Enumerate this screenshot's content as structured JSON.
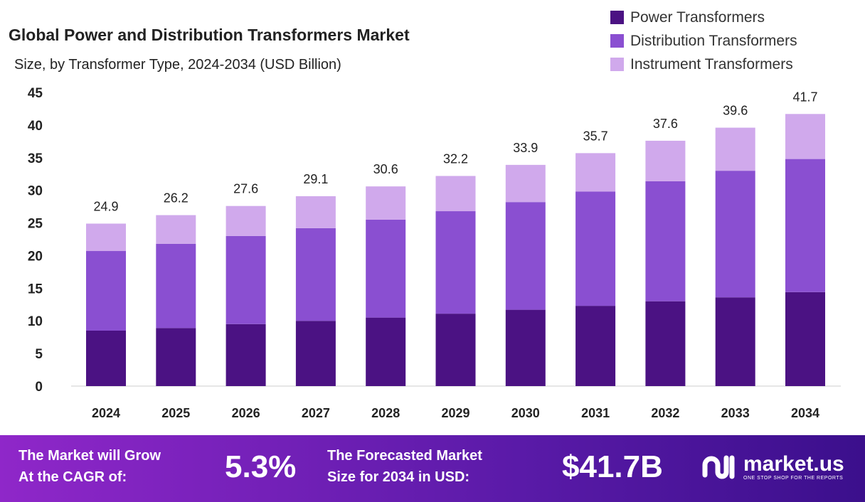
{
  "chart_data": {
    "type": "bar",
    "stacked": true,
    "title": "Global Power and Distribution Transformers Market",
    "subtitle": "Size, by Transformer Type, 2024-2034 (USD Billion)",
    "categories": [
      "2024",
      "2025",
      "2026",
      "2027",
      "2028",
      "2029",
      "2030",
      "2031",
      "2032",
      "2033",
      "2034"
    ],
    "series": [
      {
        "name": "Power Transformers",
        "color": "#4b1283",
        "values": [
          8.5,
          8.9,
          9.5,
          10.0,
          10.5,
          11.1,
          11.7,
          12.3,
          13.0,
          13.6,
          14.4
        ]
      },
      {
        "name": "Distribution Transformers",
        "color": "#8a4fd1",
        "values": [
          12.2,
          12.9,
          13.5,
          14.2,
          15.0,
          15.7,
          16.5,
          17.5,
          18.4,
          19.4,
          20.4
        ]
      },
      {
        "name": "Instrument Transformers",
        "color": "#d0a9ec",
        "values": [
          4.2,
          4.4,
          4.6,
          4.9,
          5.1,
          5.4,
          5.7,
          5.9,
          6.2,
          6.6,
          6.9
        ]
      }
    ],
    "totals": [
      "24.9",
      "26.2",
      "27.6",
      "29.1",
      "30.6",
      "32.2",
      "33.9",
      "35.7",
      "37.6",
      "39.6",
      "41.7"
    ],
    "yticks": [
      0,
      5,
      10,
      15,
      20,
      25,
      30,
      35,
      40,
      45
    ],
    "ylim": [
      0,
      45
    ],
    "grid": false,
    "legend": "top-right"
  },
  "footer": {
    "cagr_label_1": "The Market will Grow",
    "cagr_label_2": "At the CAGR of:",
    "cagr_value": "5.3%",
    "forecast_label_1": "The Forecasted Market",
    "forecast_label_2": "Size for 2034 in USD:",
    "forecast_value": "$41.7B",
    "logo_name": "market.us",
    "logo_tagline": "ONE STOP SHOP FOR THE REPORTS"
  }
}
